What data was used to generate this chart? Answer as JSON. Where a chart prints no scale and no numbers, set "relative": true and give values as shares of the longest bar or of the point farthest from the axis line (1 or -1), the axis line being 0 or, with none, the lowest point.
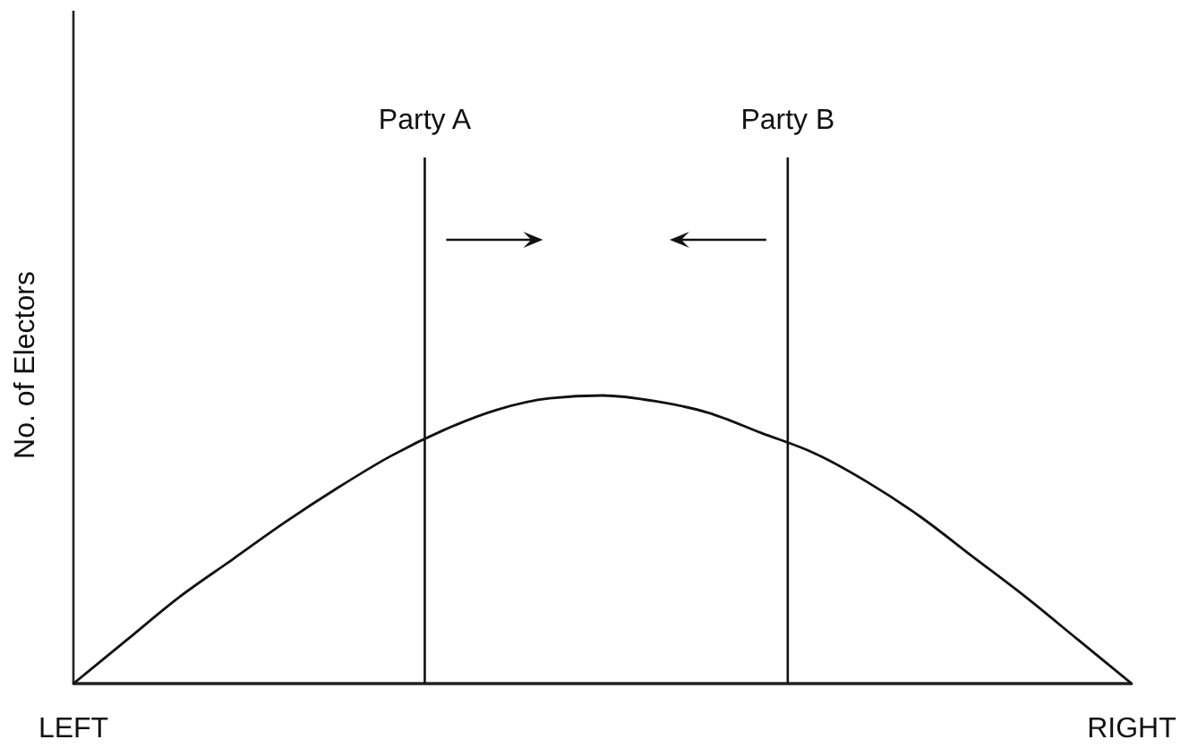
{
  "chart_data": {
    "type": "line",
    "relative": true,
    "ylabel": "No. of Electors",
    "categories": [
      "LEFT",
      null,
      null,
      null,
      null,
      null,
      null,
      null,
      null,
      null,
      null,
      null,
      null,
      null,
      null,
      null,
      null,
      null,
      null,
      null,
      "RIGHT"
    ],
    "series": [
      {
        "color": "#111111",
        "values": [
          0,
          0.15,
          0.3,
          0.43,
          0.56,
          0.68,
          0.79,
          0.88,
          0.95,
          0.99,
          1,
          0.98,
          0.94,
          0.87,
          0.8,
          0.7,
          0.58,
          0.44,
          0.3,
          0.15,
          0
        ]
      }
    ],
    "annotations": [
      "Party A",
      "Party B"
    ],
    "line_style": "solid"
  }
}
